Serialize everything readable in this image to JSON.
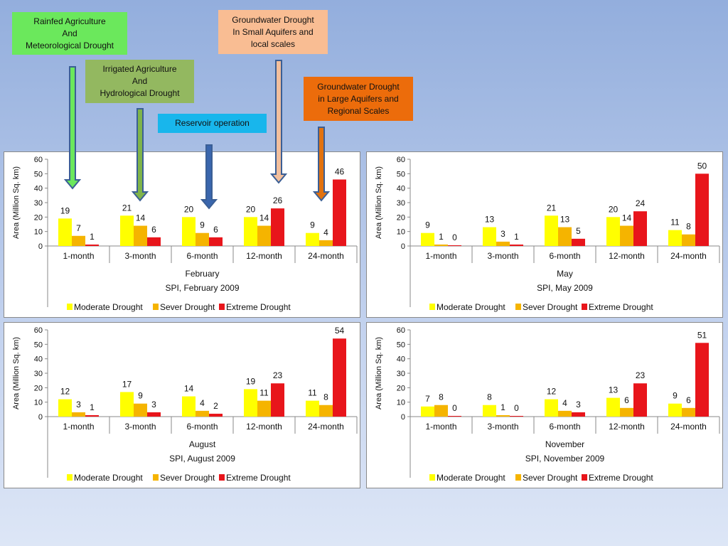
{
  "annotations": [
    {
      "id": "rainfed",
      "text": "Rainfed Agriculture\nAnd\nMeteorological Drought",
      "color": "#6be85c",
      "arrow_fill": "#6be85c"
    },
    {
      "id": "irrigated",
      "text": "Irrigated Agriculture\nAnd\nHydrological Drought",
      "color": "#93b860",
      "arrow_fill": "#7fb44a"
    },
    {
      "id": "reservoir",
      "text": "Reservoir operation",
      "color": "#18b6ec",
      "arrow_fill": "#3a66ad"
    },
    {
      "id": "small_aquifers",
      "text": "Groundwater Drought\nIn Small Aquifers and\nlocal scales",
      "color": "#f9bd93",
      "arrow_fill": "#f2bf9d"
    },
    {
      "id": "large_aquifers",
      "text": "Groundwater Drought\nin Large Aquifers and\nRegional Scales",
      "color": "#ec6c0b",
      "arrow_fill": "#e2720f"
    }
  ],
  "colors": {
    "moderate": "#ffff00",
    "sever": "#f5b400",
    "extreme": "#e8151b",
    "arrow_stroke": "#3b5f95"
  },
  "chart_data": [
    {
      "type": "bar",
      "month": "February",
      "subtitle": "SPI, February 2009",
      "ylabel": "Area (Million Sq. km)",
      "ylim": [
        0,
        60
      ],
      "yticks": [
        0,
        10,
        20,
        30,
        40,
        50,
        60
      ],
      "categories": [
        "1-month",
        "3-month",
        "6-month",
        "12-month",
        "24-month"
      ],
      "series": [
        {
          "name": "Moderate Drought",
          "values": [
            19,
            21,
            20,
            20,
            9
          ],
          "labels": [
            "19",
            "21",
            "20",
            "20",
            "9"
          ]
        },
        {
          "name": "Sever Drought",
          "values": [
            7,
            14,
            9,
            14,
            4
          ],
          "labels": [
            "7",
            "14",
            "9",
            "14",
            "4"
          ]
        },
        {
          "name": "Extreme Drought",
          "values": [
            1,
            6,
            6,
            26,
            46
          ],
          "labels": [
            "1",
            "6",
            "6",
            "26",
            "46"
          ]
        }
      ]
    },
    {
      "type": "bar",
      "month": "May",
      "subtitle": "SPI, May 2009",
      "ylabel": "Area (Million Sq. km)",
      "ylim": [
        0,
        60
      ],
      "yticks": [
        0,
        10,
        20,
        30,
        40,
        50,
        60
      ],
      "categories": [
        "1-month",
        "3-month",
        "6-month",
        "12-month",
        "24-month"
      ],
      "series": [
        {
          "name": "Moderate Drought",
          "values": [
            9,
            13,
            21,
            20,
            11
          ],
          "labels": [
            "9",
            "13",
            "21",
            "20",
            "11"
          ]
        },
        {
          "name": "Sever Drought",
          "values": [
            1,
            3,
            13,
            14,
            8
          ],
          "labels": [
            "1",
            "3",
            "13",
            "14",
            "8"
          ]
        },
        {
          "name": "Extreme Drought",
          "values": [
            0,
            1,
            5,
            24,
            50
          ],
          "labels": [
            "0",
            "1",
            "5",
            "24",
            "50"
          ]
        }
      ]
    },
    {
      "type": "bar",
      "month": "August",
      "subtitle": "SPI, August 2009",
      "ylabel": "Area (Million Sq. km)",
      "ylim": [
        0,
        60
      ],
      "yticks": [
        0,
        10,
        20,
        30,
        40,
        50,
        60
      ],
      "categories": [
        "1-month",
        "3-month",
        "6-month",
        "12-month",
        "24-month"
      ],
      "series": [
        {
          "name": "Moderate Drought",
          "values": [
            12,
            17,
            14,
            19,
            11
          ],
          "labels": [
            "12",
            "17",
            "14",
            "19",
            "11"
          ]
        },
        {
          "name": "Sever Drought",
          "values": [
            3,
            9,
            4,
            11,
            8
          ],
          "labels": [
            "3",
            "9",
            "4",
            "11",
            "8"
          ]
        },
        {
          "name": "Extreme Drought",
          "values": [
            1,
            3,
            2,
            23,
            54
          ],
          "labels": [
            "1",
            "3",
            "2",
            "23",
            "54"
          ]
        }
      ]
    },
    {
      "type": "bar",
      "month": "November",
      "subtitle": "SPI, November 2009",
      "ylabel": "Area (Million Sq. km)",
      "ylim": [
        0,
        60
      ],
      "yticks": [
        0,
        10,
        20,
        30,
        40,
        50,
        60
      ],
      "categories": [
        "1-month",
        "3-month",
        "6-month",
        "12-month",
        "24-month"
      ],
      "series": [
        {
          "name": "Moderate Drought",
          "values": [
            7,
            8,
            12,
            13,
            9
          ],
          "labels": [
            "7",
            "8",
            "12",
            "13",
            "9"
          ]
        },
        {
          "name": "Sever Drought",
          "values": [
            8,
            1,
            4,
            6,
            6
          ],
          "labels": [
            "8",
            "1",
            "4",
            "6",
            "6"
          ]
        },
        {
          "name": "Extreme Drought",
          "values": [
            0,
            0,
            3,
            23,
            51
          ],
          "labels": [
            "0",
            "0",
            "3",
            "23",
            "51"
          ]
        }
      ]
    }
  ]
}
